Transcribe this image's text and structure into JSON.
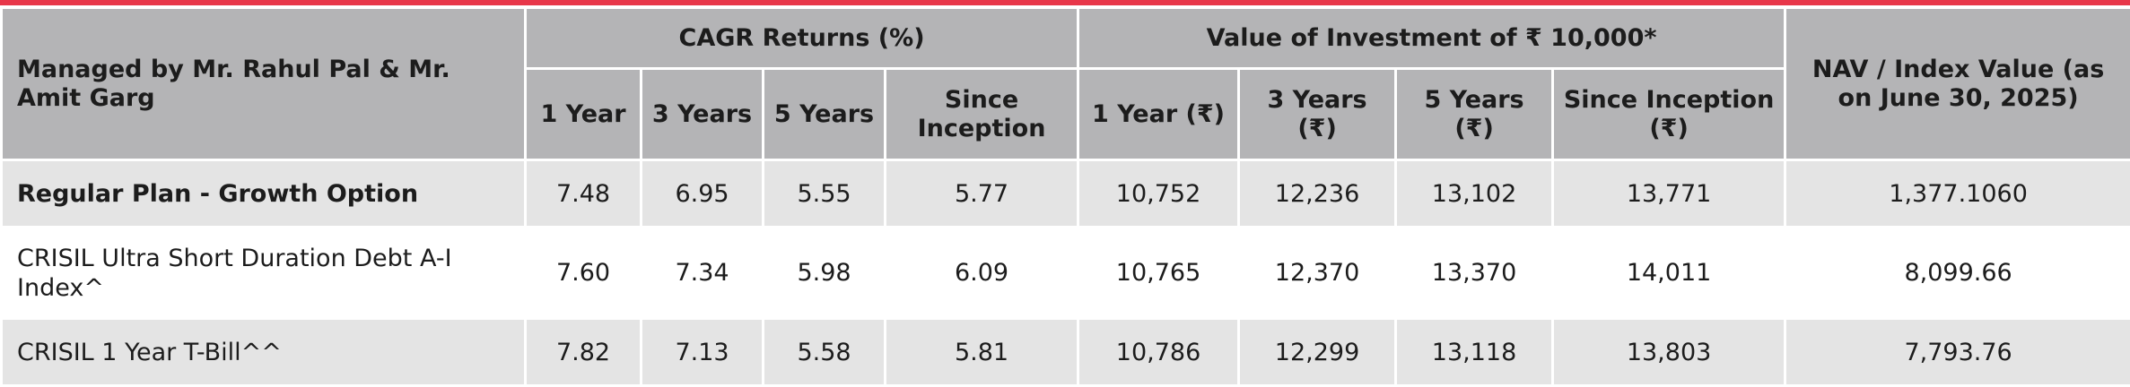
{
  "table": {
    "manager_header": "Managed by Mr. Rahul Pal & Mr. Amit Garg",
    "groups": {
      "cagr": "CAGR Returns (%)",
      "value": "Value of Investment of ₹ 10,000*",
      "nav": "NAV / Index Value (as on June 30, 2025)"
    },
    "subheaders": {
      "cagr": [
        "1 Year",
        "3 Years",
        "5 Years",
        "Since Inception"
      ],
      "value": [
        "1 Year (₹)",
        "3 Years (₹)",
        "5 Years (₹)",
        "Since Inception (₹)"
      ]
    },
    "rows": [
      {
        "label": "Regular Plan - Growth Option",
        "cagr": [
          "7.48",
          "6.95",
          "5.55",
          "5.77"
        ],
        "value": [
          "10,752",
          "12,236",
          "13,102",
          "13,771"
        ],
        "nav": "1,377.1060"
      },
      {
        "label": "CRISIL Ultra Short Duration Debt A-I Index^",
        "cagr": [
          "7.60",
          "7.34",
          "5.98",
          "6.09"
        ],
        "value": [
          "10,765",
          "12,370",
          "13,370",
          "14,011"
        ],
        "nav": "8,099.66"
      },
      {
        "label": "CRISIL 1 Year T-Bill^^",
        "cagr": [
          "7.82",
          "7.13",
          "5.58",
          "5.81"
        ],
        "value": [
          "10,786",
          "12,299",
          "13,118",
          "13,803"
        ],
        "nav": "7,793.76"
      }
    ]
  },
  "colors": {
    "accent_line": "#e8374a",
    "header_bg": "#b4b4b6",
    "band_bg": "#e4e4e4"
  }
}
